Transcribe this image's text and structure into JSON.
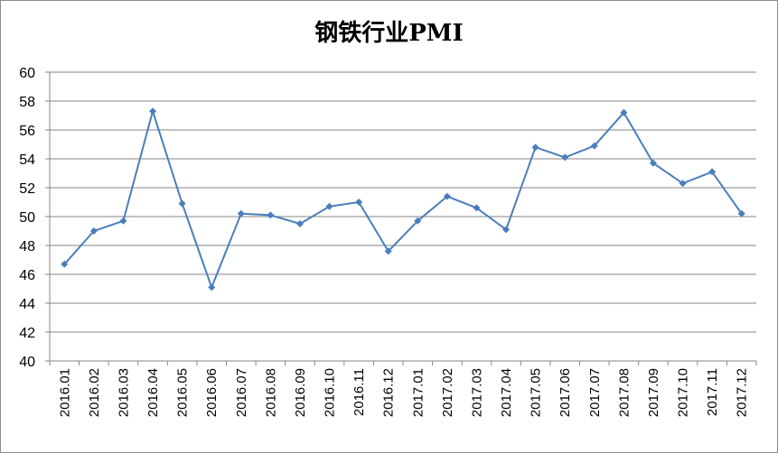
{
  "chart_data": {
    "type": "line",
    "title": "钢铁行业PMI",
    "categories": [
      "2016.01",
      "2016.02",
      "2016.03",
      "2016.04",
      "2016.05",
      "2016.06",
      "2016.07",
      "2016.08",
      "2016.09",
      "2016.10",
      "2016.11",
      "2016.12",
      "2017.01",
      "2017.02",
      "2017.03",
      "2017.04",
      "2017.05",
      "2017.06",
      "2017.07",
      "2017.08",
      "2017.09",
      "2017.10",
      "2017.11",
      "2017.12"
    ],
    "series": [
      {
        "values": [
          46.7,
          49.0,
          49.7,
          57.3,
          50.9,
          45.1,
          50.2,
          50.1,
          49.5,
          50.7,
          51.0,
          47.6,
          49.7,
          51.4,
          50.6,
          49.1,
          54.8,
          54.1,
          54.9,
          57.2,
          53.7,
          52.3,
          53.1,
          50.2
        ]
      }
    ],
    "ylim": [
      40,
      60
    ],
    "yticks": [
      40,
      42,
      44,
      46,
      48,
      50,
      52,
      54,
      56,
      58,
      60
    ],
    "grid": true,
    "legend": "none",
    "colors": {
      "line": "#4a7ebb",
      "grid": "#868686",
      "axis": "#868686"
    }
  }
}
